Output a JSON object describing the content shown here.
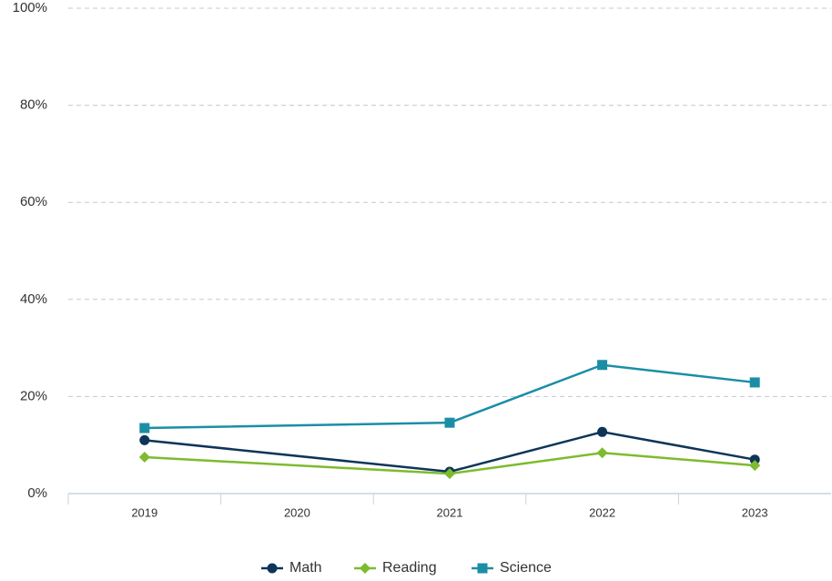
{
  "chart_data": {
    "type": "line",
    "x": [
      2019,
      2021,
      2022,
      2023
    ],
    "xlim": [
      2018.5,
      2023.5
    ],
    "xticks": [
      2019,
      2020,
      2021,
      2022,
      2023
    ],
    "ylim": [
      0,
      100
    ],
    "yticks": [
      {
        "value": 0,
        "label": "0%"
      },
      {
        "value": 20,
        "label": "20%"
      },
      {
        "value": 40,
        "label": "40%"
      },
      {
        "value": 60,
        "label": "60%"
      },
      {
        "value": 80,
        "label": "80%"
      },
      {
        "value": 100,
        "label": "100%"
      }
    ],
    "grid": true,
    "legend": "bottom",
    "series": [
      {
        "name": "Math",
        "color": "#0d3558",
        "marker": "circle",
        "values": [
          11,
          4.5,
          12.7,
          7
        ]
      },
      {
        "name": "Reading",
        "color": "#7dbb2f",
        "marker": "diamond",
        "values": [
          7.5,
          4.1,
          8.4,
          5.8
        ]
      },
      {
        "name": "Science",
        "color": "#1b8ea6",
        "marker": "square",
        "values": [
          13.5,
          14.6,
          26.5,
          22.9
        ]
      }
    ]
  }
}
